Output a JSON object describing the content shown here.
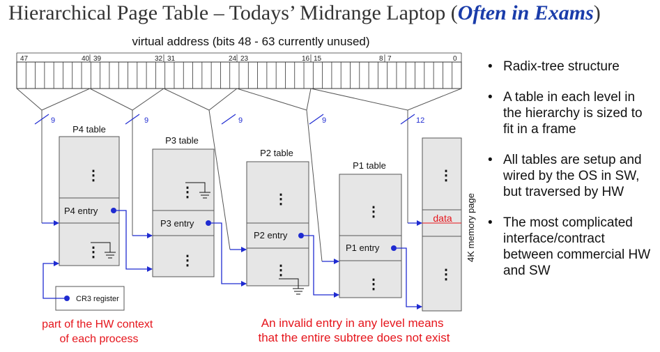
{
  "title": {
    "prefix": "Hierarchical Page Table – Todays’ Midrange Laptop (",
    "emphasis": "Often in Exams",
    "suffix": ")"
  },
  "virtual_address_label": "virtual address (bits 48 - 63 currently unused)",
  "bit_labels": [
    "47",
    "40",
    "39",
    "32",
    "31",
    "24",
    "23",
    "16",
    "15",
    "8",
    "7",
    "0"
  ],
  "field_widths": [
    "9",
    "9",
    "9",
    "9",
    "12"
  ],
  "tables": [
    {
      "name": "P4 table",
      "entry": "P4 entry"
    },
    {
      "name": "P3 table",
      "entry": "P3 entry"
    },
    {
      "name": "P2 table",
      "entry": "P2 entry"
    },
    {
      "name": "P1 table",
      "entry": "P1 entry"
    }
  ],
  "page": {
    "label": "4K memory page",
    "data_label": "data"
  },
  "cr3_label": "CR3 register",
  "notes": {
    "hw_context": "part of the HW context\nof each process",
    "invalid_entry": "An invalid entry in any level means\nthat the entire subtree does not exist"
  },
  "bullets": [
    "Radix-tree structure",
    "A table in each level in the hierarchy is sized to fit in a frame",
    "All tables are setup and wired by the OS in SW, but traversed by HW",
    "The most complicated interface/contract between commercial HW and SW"
  ],
  "colors": {
    "arrow": "#1f2bd1",
    "note_red": "#e5141b",
    "table_fill": "#e6e6e6",
    "title_emphasis": "#1a3caa"
  }
}
